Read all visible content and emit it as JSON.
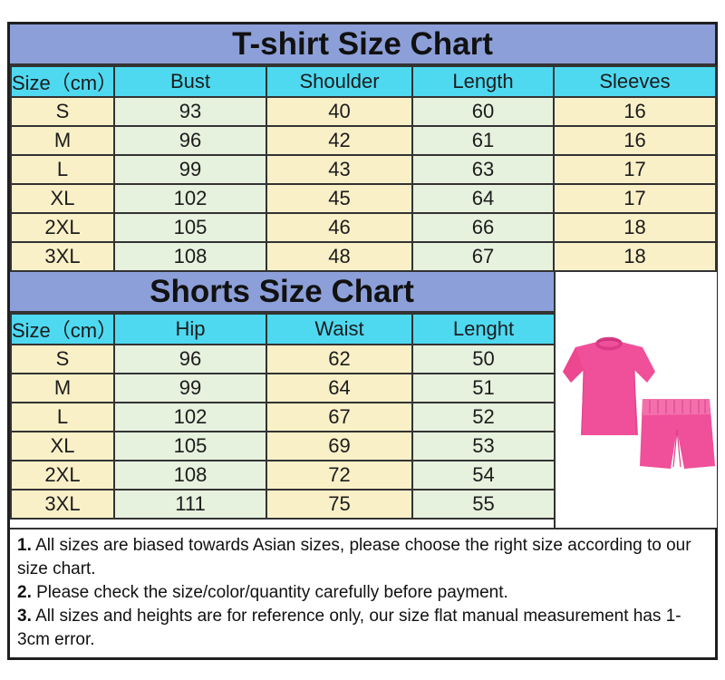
{
  "colors": {
    "title_bar": "#8C9FD8",
    "header_cyan": "#4ED9F1",
    "cell_cream": "#FAF0C8",
    "cell_green": "#E6F1DE",
    "grid_border": "#333333",
    "product_pink": "#F04F9A",
    "product_pink_dark": "#D83C85",
    "product_pink_light": "#F470AC"
  },
  "chart_data": [
    {
      "type": "table",
      "title": "T-shirt Size Chart",
      "columns": [
        "Size（cm）",
        "Bust",
        "Shoulder",
        "Length",
        "Sleeves"
      ],
      "rows": [
        [
          "S",
          "93",
          "40",
          "60",
          "16"
        ],
        [
          "M",
          "96",
          "42",
          "61",
          "16"
        ],
        [
          "L",
          "99",
          "43",
          "63",
          "17"
        ],
        [
          "XL",
          "102",
          "45",
          "64",
          "17"
        ],
        [
          "2XL",
          "105",
          "46",
          "66",
          "18"
        ],
        [
          "3XL",
          "108",
          "48",
          "67",
          "18"
        ]
      ]
    },
    {
      "type": "table",
      "title": "Shorts Size Chart",
      "columns": [
        "Size（cm）",
        "Hip",
        "Waist",
        "Lenght"
      ],
      "rows": [
        [
          "S",
          "96",
          "62",
          "50"
        ],
        [
          "M",
          "99",
          "64",
          "51"
        ],
        [
          "L",
          "102",
          "67",
          "52"
        ],
        [
          "XL",
          "105",
          "69",
          "53"
        ],
        [
          "2XL",
          "108",
          "72",
          "54"
        ],
        [
          "3XL",
          "111",
          "75",
          "55"
        ]
      ]
    }
  ],
  "product_image": {
    "description": "hot pink short-sleeve t-shirt and matching shorts set"
  },
  "notes": [
    {
      "num": "1.",
      "text": " All sizes are biased towards Asian sizes, please choose the right size according to our size chart."
    },
    {
      "num": "2.",
      "text": " Please check the size/color/quantity carefully before payment."
    },
    {
      "num": "3.",
      "text": " All sizes and heights are for reference only, our size flat manual measurement has 1-3cm error."
    }
  ]
}
